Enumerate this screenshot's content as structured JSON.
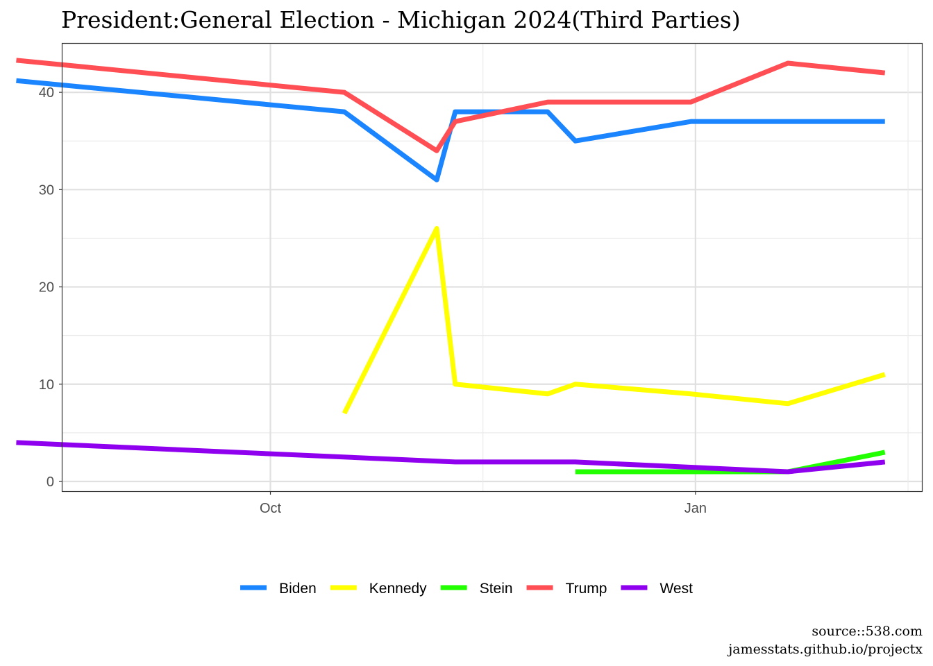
{
  "chart_data": {
    "type": "line",
    "title": "President:General Election - Michigan 2024(Third Parties)",
    "xlabel": "",
    "ylabel": "",
    "x_axis_type": "date",
    "xlim": [
      "2023-08-17",
      "2024-02-19"
    ],
    "x_ticks": [
      {
        "date": "2023-10-01",
        "label": "Oct"
      },
      {
        "date": "2024-01-01",
        "label": "Jan"
      }
    ],
    "ylim": [
      -1,
      45
    ],
    "y_ticks": [
      0,
      10,
      20,
      30,
      40
    ],
    "grid": true,
    "legend_position": "bottom",
    "series": [
      {
        "name": "Biden",
        "color": "#1a85ff",
        "points": [
          {
            "x": "2023-08-07",
            "y": 41.2
          },
          {
            "x": "2023-10-17",
            "y": 38
          },
          {
            "x": "2023-11-06",
            "y": 31
          },
          {
            "x": "2023-11-10",
            "y": 38
          },
          {
            "x": "2023-11-30",
            "y": 38
          },
          {
            "x": "2023-12-06",
            "y": 35
          },
          {
            "x": "2023-12-31",
            "y": 37
          },
          {
            "x": "2024-01-21",
            "y": 37
          },
          {
            "x": "2024-02-11",
            "y": 37
          }
        ]
      },
      {
        "name": "Kennedy",
        "color": "#ffff00",
        "points": [
          {
            "x": "2023-10-17",
            "y": 7
          },
          {
            "x": "2023-11-06",
            "y": 26
          },
          {
            "x": "2023-11-10",
            "y": 10
          },
          {
            "x": "2023-11-30",
            "y": 9
          },
          {
            "x": "2023-12-06",
            "y": 10
          },
          {
            "x": "2023-12-31",
            "y": 9
          },
          {
            "x": "2024-01-21",
            "y": 8
          },
          {
            "x": "2024-02-11",
            "y": 11
          }
        ]
      },
      {
        "name": "Stein",
        "color": "#22ff00",
        "points": [
          {
            "x": "2023-12-06",
            "y": 1
          },
          {
            "x": "2023-12-31",
            "y": 1
          },
          {
            "x": "2024-01-21",
            "y": 1
          },
          {
            "x": "2024-02-11",
            "y": 3
          }
        ]
      },
      {
        "name": "Trump",
        "color": "#ff4f55",
        "points": [
          {
            "x": "2023-08-07",
            "y": 43.3
          },
          {
            "x": "2023-10-17",
            "y": 40
          },
          {
            "x": "2023-11-06",
            "y": 34
          },
          {
            "x": "2023-11-10",
            "y": 37
          },
          {
            "x": "2023-11-30",
            "y": 39
          },
          {
            "x": "2023-12-06",
            "y": 39
          },
          {
            "x": "2023-12-31",
            "y": 39
          },
          {
            "x": "2024-01-21",
            "y": 43
          },
          {
            "x": "2024-02-11",
            "y": 42
          }
        ]
      },
      {
        "name": "West",
        "color": "#8f00ef",
        "points": [
          {
            "x": "2023-08-07",
            "y": 4
          },
          {
            "x": "2023-11-10",
            "y": 2
          },
          {
            "x": "2023-12-06",
            "y": 2
          },
          {
            "x": "2024-01-21",
            "y": 1
          },
          {
            "x": "2024-02-11",
            "y": 2
          }
        ]
      }
    ],
    "caption_lines": [
      "source::538.com",
      "jamesstats.github.io/projectx"
    ]
  }
}
